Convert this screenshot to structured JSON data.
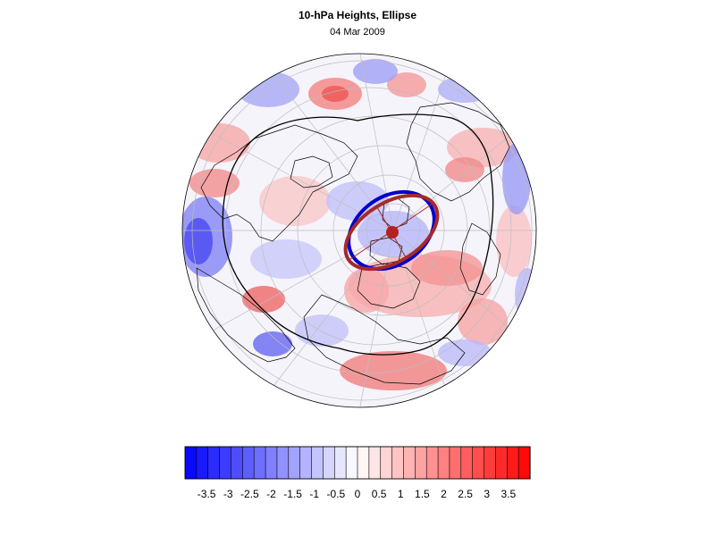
{
  "figure": {
    "title": "10-hPa Heights, Ellipse",
    "date": "04 Mar 2009"
  },
  "colorbar": {
    "labels": [
      "-3.5",
      "-3",
      "-2.5",
      "-2",
      "-1.5",
      "-1",
      "-0.5",
      "0",
      "0.5",
      "1",
      "1.5",
      "2",
      "2.5",
      "3",
      "3.5"
    ],
    "min": -4,
    "max": 4,
    "bins": 30,
    "negative_color": "#0000ff",
    "positive_color": "#ff0000"
  },
  "colors": {
    "ellipse_fit": "#a52a2a",
    "vortex_edge": "#0000cd",
    "contour": "#000000",
    "coastline": "#000000",
    "graticule": "#bbbbbb"
  },
  "map_legend": {
    "projection": "polar-orthographic",
    "hemisphere": "north"
  }
}
